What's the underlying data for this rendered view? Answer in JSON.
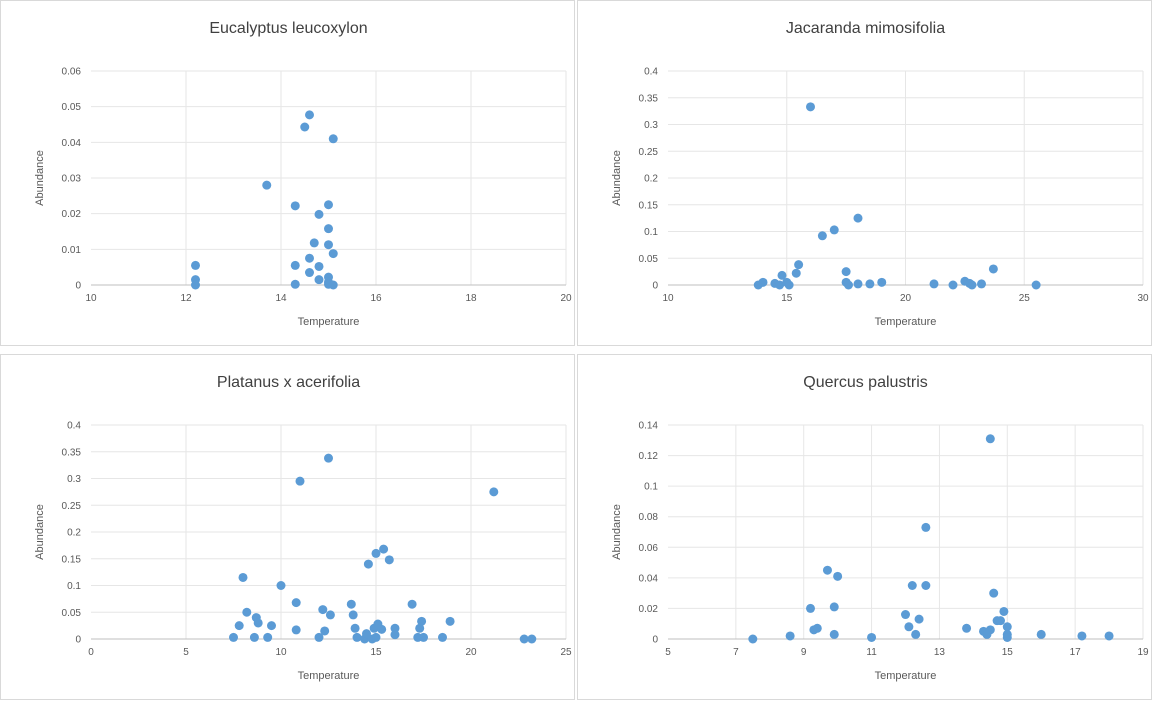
{
  "colors": {
    "marker": "#5b9bd5",
    "grid": "#e6e6e6",
    "axis": "#bfbfbf",
    "text": "#595959",
    "title": "#404040"
  },
  "chart_data": [
    {
      "type": "scatter",
      "title": "Eucalyptus leucoxylon",
      "xlabel": "Temperature",
      "ylabel": "Abundance",
      "xlim": [
        10,
        20
      ],
      "ylim": [
        0,
        0.06
      ],
      "xticks": [
        "10",
        "12",
        "14",
        "16",
        "18",
        "20"
      ],
      "yticks": [
        "0",
        "0.01",
        "0.02",
        "0.03",
        "0.04",
        "0.05",
        "0.06"
      ],
      "grid": true,
      "legend": "none",
      "x": [
        12.2,
        12.2,
        12.2,
        13.7,
        14.3,
        14.3,
        14.3,
        14.5,
        14.6,
        14.6,
        14.6,
        14.7,
        14.8,
        14.8,
        14.8,
        15.0,
        15.0,
        15.0,
        15.0,
        15.0,
        15.0,
        15.1,
        15.1,
        15.1
      ],
      "y": [
        0.0055,
        0.0015,
        0.0,
        0.028,
        0.0222,
        0.0055,
        0.0002,
        0.0443,
        0.0477,
        0.0035,
        0.0075,
        0.0118,
        0.0198,
        0.0052,
        0.0015,
        0.0225,
        0.0158,
        0.0113,
        0.0022,
        0.0008,
        0.0002,
        0.041,
        0.0088,
        0.0
      ]
    },
    {
      "type": "scatter",
      "title": "Jacaranda mimosifolia",
      "xlabel": "Temperature",
      "ylabel": "Abundance",
      "xlim": [
        10,
        30
      ],
      "ylim": [
        0,
        0.4
      ],
      "xticks": [
        "10",
        "15",
        "20",
        "25",
        "30"
      ],
      "yticks": [
        "0",
        "0.05",
        "0.1",
        "0.15",
        "0.2",
        "0.25",
        "0.3",
        "0.35",
        "0.4"
      ],
      "grid": true,
      "legend": "none",
      "x": [
        13.8,
        14.0,
        14.5,
        14.7,
        14.8,
        15.0,
        15.1,
        15.4,
        15.5,
        16.0,
        16.5,
        17.0,
        17.5,
        17.5,
        17.6,
        18.0,
        18.0,
        18.5,
        19.0,
        21.2,
        22.0,
        22.5,
        22.7,
        22.8,
        23.2,
        23.7,
        25.5
      ],
      "y": [
        0.0,
        0.005,
        0.003,
        0.0,
        0.018,
        0.005,
        0.0,
        0.022,
        0.038,
        0.333,
        0.092,
        0.103,
        0.025,
        0.005,
        0.0,
        0.125,
        0.002,
        0.002,
        0.005,
        0.002,
        0.0,
        0.007,
        0.003,
        0.0,
        0.002,
        0.03,
        0.0
      ]
    },
    {
      "type": "scatter",
      "title": "Platanus x acerifolia",
      "xlabel": "Temperature",
      "ylabel": "Abundance",
      "xlim": [
        0,
        25
      ],
      "ylim": [
        0,
        0.4
      ],
      "xticks": [
        "0",
        "5",
        "10",
        "15",
        "20",
        "25"
      ],
      "yticks": [
        "0",
        "0.05",
        "0.1",
        "0.15",
        "0.2",
        "0.25",
        "0.3",
        "0.35",
        "0.4"
      ],
      "grid": true,
      "legend": "none",
      "x": [
        7.5,
        7.8,
        8.0,
        8.2,
        8.6,
        8.7,
        8.8,
        9.3,
        9.5,
        10.0,
        10.8,
        10.8,
        11.0,
        12.0,
        12.2,
        12.3,
        12.5,
        12.6,
        13.7,
        13.8,
        13.9,
        14.0,
        14.4,
        14.5,
        14.6,
        14.8,
        14.9,
        15.0,
        15.0,
        15.1,
        15.3,
        15.4,
        15.7,
        16.0,
        16.0,
        16.9,
        17.2,
        17.3,
        17.4,
        17.5,
        18.5,
        18.9,
        21.2,
        22.8,
        23.2
      ],
      "y": [
        0.003,
        0.025,
        0.115,
        0.05,
        0.003,
        0.04,
        0.03,
        0.003,
        0.025,
        0.1,
        0.068,
        0.017,
        0.295,
        0.003,
        0.055,
        0.015,
        0.338,
        0.045,
        0.065,
        0.045,
        0.02,
        0.003,
        0.0,
        0.01,
        0.14,
        0.0,
        0.02,
        0.16,
        0.003,
        0.028,
        0.018,
        0.168,
        0.148,
        0.02,
        0.008,
        0.065,
        0.003,
        0.02,
        0.033,
        0.003,
        0.003,
        0.033,
        0.275,
        0.0,
        0.0
      ]
    },
    {
      "type": "scatter",
      "title": "Quercus palustris",
      "xlabel": "Temperature",
      "ylabel": "Abundance",
      "xlim": [
        5,
        19
      ],
      "ylim": [
        0,
        0.14
      ],
      "xticks": [
        "5",
        "7",
        "9",
        "11",
        "13",
        "15",
        "17",
        "19"
      ],
      "yticks": [
        "0",
        "0.02",
        "0.04",
        "0.06",
        "0.08",
        "0.1",
        "0.12",
        "0.14"
      ],
      "grid": true,
      "legend": "none",
      "x": [
        7.5,
        8.6,
        9.2,
        9.3,
        9.4,
        9.7,
        9.9,
        9.9,
        10.0,
        11.0,
        12.0,
        12.1,
        12.2,
        12.3,
        12.4,
        12.6,
        12.6,
        13.8,
        14.3,
        14.4,
        14.5,
        14.5,
        14.6,
        14.7,
        14.8,
        14.9,
        15.0,
        15.0,
        15.0,
        16.0,
        17.2,
        18.0
      ],
      "y": [
        0.0,
        0.002,
        0.02,
        0.006,
        0.007,
        0.045,
        0.021,
        0.003,
        0.041,
        0.001,
        0.016,
        0.008,
        0.035,
        0.003,
        0.013,
        0.073,
        0.035,
        0.007,
        0.005,
        0.003,
        0.006,
        0.131,
        0.03,
        0.012,
        0.012,
        0.018,
        0.008,
        0.003,
        0.001,
        0.003,
        0.002,
        0.002
      ]
    }
  ]
}
